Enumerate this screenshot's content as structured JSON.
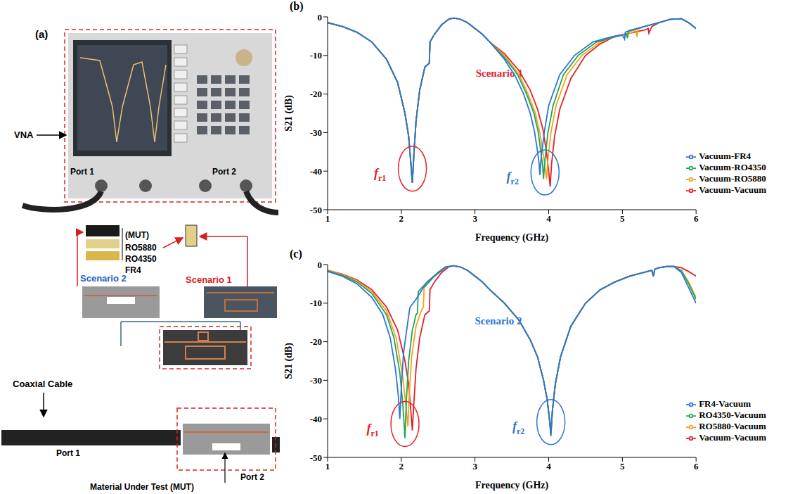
{
  "panel_a": {
    "label": "(a)",
    "instrument": "VNA",
    "ports": [
      "Port 1",
      "Port 2"
    ],
    "mut_label": "(MUT)",
    "materials": [
      "RO5880",
      "RO4350",
      "FR4"
    ],
    "scenarios": [
      "Scenario 2",
      "Scenario 1"
    ],
    "cable": "Coaxial Cable",
    "fixture_ports": [
      "Port 1",
      "Port 2"
    ],
    "mut_caption": "Material Under Test (MUT)"
  },
  "chart_data": [
    {
      "type": "line",
      "panel": "(b)",
      "x_label": "Frequency (GHz)",
      "y_label": "S21 (dB)",
      "xlim": [
        1,
        6
      ],
      "xticks": [
        1,
        2,
        3,
        4,
        5,
        6
      ],
      "ylim": [
        -50,
        0
      ],
      "yticks": [
        -50,
        -40,
        -30,
        -20,
        -10,
        0
      ],
      "grid": false,
      "legend": "lower right",
      "annotation": {
        "text": "Scenario 1",
        "color": "#e5202a"
      },
      "resonances": [
        {
          "text": "fr1",
          "x": 2.15,
          "color": "#e5202a"
        },
        {
          "text": "fr2",
          "x": 3.95,
          "color": "#2e75d6"
        }
      ],
      "series": [
        {
          "name": "Vacuum-Vacuum",
          "color": "#e5202a",
          "x": [
            1,
            1.2,
            1.4,
            1.6,
            1.8,
            1.95,
            2.05,
            2.1,
            2.13,
            2.15,
            2.17,
            2.2,
            2.25,
            2.32,
            2.38,
            2.39,
            2.45,
            2.55,
            2.65,
            2.72,
            2.8,
            2.9,
            3.0,
            3.1,
            3.2,
            3.4,
            3.6,
            3.75,
            3.85,
            3.92,
            3.97,
            4.0,
            4.02,
            4.04,
            4.08,
            4.15,
            4.3,
            4.5,
            4.7,
            4.9,
            5.1,
            5.3,
            5.35,
            5.36,
            5.4,
            5.5,
            5.65,
            5.8,
            5.9,
            6.0
          ],
          "values": [
            -1.5,
            -2.5,
            -4,
            -6.5,
            -11,
            -17,
            -25,
            -31,
            -38,
            -43,
            -36,
            -27,
            -19,
            -13,
            -12,
            -6.5,
            -4.5,
            -2,
            -0.5,
            -0.3,
            -0.6,
            -1.5,
            -3,
            -4.5,
            -6.5,
            -9.5,
            -14,
            -19,
            -24,
            -29,
            -35,
            -40,
            -44,
            -38,
            -31,
            -24,
            -16,
            -10,
            -7,
            -5,
            -4.2,
            -3.4,
            -3,
            -4.2,
            -2.5,
            -1.5,
            -0.6,
            -0.5,
            -1.5,
            -3
          ]
        },
        {
          "name": "Vacuum-RO5880",
          "color": "#f2a51a",
          "x": [
            1,
            1.2,
            1.4,
            1.6,
            1.8,
            1.95,
            2.05,
            2.1,
            2.13,
            2.15,
            2.17,
            2.2,
            2.25,
            2.32,
            2.38,
            2.39,
            2.45,
            2.55,
            2.65,
            2.72,
            2.8,
            2.9,
            3.0,
            3.1,
            3.2,
            3.4,
            3.6,
            3.72,
            3.82,
            3.88,
            3.93,
            3.95,
            3.97,
            3.99,
            4.03,
            4.1,
            4.25,
            4.45,
            4.7,
            4.9,
            5.1,
            5.18,
            5.2,
            5.21,
            5.3,
            5.5,
            5.65,
            5.8,
            5.9,
            6.0
          ],
          "values": [
            -1.5,
            -2.5,
            -4,
            -6.5,
            -11,
            -17,
            -25,
            -31,
            -38,
            -43,
            -36,
            -27,
            -19,
            -13,
            -12,
            -6.5,
            -4.5,
            -2,
            -0.5,
            -0.3,
            -0.6,
            -1.5,
            -3,
            -4.5,
            -6.5,
            -10,
            -15,
            -20,
            -25,
            -30,
            -36,
            -39,
            -42,
            -37,
            -30,
            -23,
            -15,
            -10,
            -6.5,
            -5,
            -4.3,
            -3.6,
            -5.2,
            -3.2,
            -2.5,
            -1.5,
            -0.6,
            -0.5,
            -1.5,
            -3
          ]
        },
        {
          "name": "Vacuum-RO4350",
          "color": "#23a455",
          "x": [
            1,
            1.2,
            1.4,
            1.6,
            1.8,
            1.95,
            2.05,
            2.1,
            2.13,
            2.15,
            2.17,
            2.2,
            2.25,
            2.32,
            2.38,
            2.39,
            2.45,
            2.55,
            2.65,
            2.72,
            2.8,
            2.9,
            3.0,
            3.1,
            3.2,
            3.4,
            3.58,
            3.7,
            3.8,
            3.86,
            3.9,
            3.92,
            3.93,
            3.95,
            3.99,
            4.06,
            4.2,
            4.4,
            4.65,
            4.9,
            5.05,
            5.07,
            5.08,
            5.15,
            5.3,
            5.5,
            5.65,
            5.8,
            5.9,
            6.0
          ],
          "values": [
            -1.5,
            -2.5,
            -4,
            -6.5,
            -11,
            -17,
            -25,
            -31,
            -38,
            -43,
            -36,
            -27,
            -19,
            -13,
            -12,
            -6.5,
            -4.5,
            -2,
            -0.5,
            -0.3,
            -0.6,
            -1.5,
            -3,
            -4.5,
            -6.5,
            -10.5,
            -15,
            -20,
            -25,
            -30,
            -36,
            -39,
            -42,
            -37,
            -30,
            -23,
            -15,
            -10,
            -6.5,
            -5.2,
            -4.5,
            -5.5,
            -3.8,
            -3.4,
            -2.5,
            -1.5,
            -0.6,
            -0.5,
            -1.5,
            -3
          ]
        },
        {
          "name": "Vacuum-FR4",
          "color": "#2e75d6",
          "x": [
            1,
            1.2,
            1.4,
            1.6,
            1.8,
            1.95,
            2.05,
            2.1,
            2.13,
            2.15,
            2.17,
            2.2,
            2.25,
            2.32,
            2.38,
            2.39,
            2.45,
            2.55,
            2.65,
            2.72,
            2.8,
            2.9,
            3.0,
            3.1,
            3.2,
            3.4,
            3.55,
            3.66,
            3.75,
            3.81,
            3.85,
            3.87,
            3.88,
            3.9,
            3.94,
            4.0,
            4.15,
            4.35,
            4.6,
            4.85,
            5.0,
            5.03,
            5.04,
            5.1,
            5.3,
            5.5,
            5.65,
            5.8,
            5.9,
            6.0
          ],
          "values": [
            -1.5,
            -2.5,
            -4,
            -6.5,
            -11,
            -17,
            -25,
            -31,
            -38,
            -43,
            -36,
            -27,
            -19,
            -13,
            -12,
            -6.5,
            -4.5,
            -2,
            -0.5,
            -0.3,
            -0.6,
            -1.5,
            -3,
            -4.5,
            -6.5,
            -11,
            -15.5,
            -20,
            -25,
            -30,
            -35,
            -38,
            -41,
            -36,
            -30,
            -23,
            -15,
            -10,
            -6.5,
            -5.2,
            -4.7,
            -5.8,
            -4,
            -3.5,
            -2.5,
            -1.5,
            -0.6,
            -0.5,
            -1.5,
            -3
          ]
        }
      ]
    },
    {
      "type": "line",
      "panel": "(c)",
      "x_label": "Frequency (GHz)",
      "y_label": "S21 (dB)",
      "xlim": [
        1,
        6
      ],
      "xticks": [
        1,
        2,
        3,
        4,
        5,
        6
      ],
      "ylim": [
        -50,
        0
      ],
      "yticks": [
        -50,
        -40,
        -30,
        -20,
        -10,
        0
      ],
      "grid": false,
      "legend": "lower right",
      "annotation": {
        "text": "Scenario 2",
        "color": "#2e75d6"
      },
      "resonances": [
        {
          "text": "fr1",
          "x": 2.05,
          "color": "#e5202a"
        },
        {
          "text": "fr2",
          "x": 4.03,
          "color": "#2e75d6"
        }
      ],
      "series": [
        {
          "name": "Vacuum-Vacuum",
          "color": "#e5202a",
          "x": [
            1,
            1.2,
            1.4,
            1.6,
            1.8,
            1.95,
            2.05,
            2.1,
            2.13,
            2.15,
            2.17,
            2.2,
            2.25,
            2.32,
            2.38,
            2.39,
            2.45,
            2.55,
            2.65,
            2.72,
            2.8,
            2.9,
            3.0,
            3.1,
            3.2,
            3.4,
            3.6,
            3.75,
            3.85,
            3.93,
            3.98,
            4.01,
            4.03,
            4.05,
            4.09,
            4.16,
            4.3,
            4.5,
            4.7,
            4.9,
            5.1,
            5.3,
            5.4,
            5.42,
            5.44,
            5.5,
            5.6,
            5.7,
            5.8,
            5.9,
            6.0
          ],
          "values": [
            -1.5,
            -2.5,
            -4,
            -6.5,
            -11,
            -17,
            -25,
            -31,
            -38,
            -43,
            -36,
            -27,
            -19,
            -13,
            -12,
            -6.5,
            -4.5,
            -2,
            -0.5,
            -0.3,
            -0.6,
            -1.5,
            -3,
            -4.5,
            -6.5,
            -10,
            -14.5,
            -19.5,
            -24,
            -30,
            -35,
            -40,
            -44,
            -38,
            -31,
            -24,
            -16,
            -10,
            -6.5,
            -4.5,
            -3,
            -2,
            -1.5,
            -3,
            -1.2,
            -0.8,
            -0.5,
            -0.5,
            -0.8,
            -1.8,
            -3
          ]
        },
        {
          "name": "RO5880-Vacuum",
          "color": "#f2a51a",
          "x": [
            1,
            1.2,
            1.4,
            1.6,
            1.8,
            1.93,
            2.02,
            2.06,
            2.09,
            2.11,
            2.14,
            2.2,
            2.27,
            2.3,
            2.31,
            2.4,
            2.5,
            2.6,
            2.7,
            2.8,
            2.9,
            3.0,
            3.1,
            3.2,
            3.4,
            3.6,
            3.75,
            3.85,
            3.93,
            3.98,
            4.01,
            4.03,
            4.05,
            4.09,
            4.16,
            4.3,
            4.5,
            4.7,
            4.9,
            5.1,
            5.3,
            5.4,
            5.42,
            5.44,
            5.5,
            5.6,
            5.7,
            5.8,
            5.9,
            6.0
          ],
          "values": [
            -1.5,
            -2.6,
            -4.2,
            -7,
            -12,
            -19,
            -29,
            -36,
            -42,
            -33,
            -24,
            -16,
            -12,
            -11,
            -6,
            -4,
            -2,
            -0.6,
            -0.3,
            -0.6,
            -1.5,
            -3,
            -4.5,
            -6.5,
            -10,
            -14.5,
            -19.5,
            -24,
            -30,
            -35,
            -40,
            -43,
            -38,
            -31,
            -24,
            -16,
            -10,
            -6.5,
            -4.5,
            -3,
            -2,
            -1.5,
            -3,
            -1.2,
            -0.8,
            -0.5,
            -0.5,
            -1.5,
            -4.5,
            -8.5
          ]
        },
        {
          "name": "RO4350-Vacuum",
          "color": "#23a455",
          "x": [
            1,
            1.2,
            1.4,
            1.6,
            1.8,
            1.9,
            1.98,
            2.02,
            2.05,
            2.07,
            2.1,
            2.15,
            2.2,
            2.22,
            2.23,
            2.35,
            2.5,
            2.6,
            2.7,
            2.8,
            2.9,
            3.0,
            3.1,
            3.2,
            3.4,
            3.6,
            3.75,
            3.85,
            3.93,
            3.98,
            4.01,
            4.03,
            4.05,
            4.09,
            4.16,
            4.3,
            4.5,
            4.7,
            4.9,
            5.1,
            5.3,
            5.4,
            5.42,
            5.44,
            5.5,
            5.6,
            5.7,
            5.8,
            5.9,
            6.0
          ],
          "values": [
            -1.6,
            -2.8,
            -4.5,
            -7.5,
            -13,
            -19,
            -28,
            -36,
            -45,
            -35,
            -25,
            -17,
            -13,
            -12.5,
            -7,
            -4.5,
            -2,
            -0.6,
            -0.3,
            -0.6,
            -1.5,
            -3,
            -4.5,
            -6.5,
            -10,
            -14.5,
            -19.5,
            -24,
            -30,
            -35,
            -40,
            -43.5,
            -38,
            -31,
            -24,
            -16,
            -10,
            -6.5,
            -4.5,
            -3,
            -2,
            -1.5,
            -3,
            -1.2,
            -0.8,
            -0.5,
            -0.5,
            -1.6,
            -5,
            -9
          ]
        },
        {
          "name": "FR4-Vacuum",
          "color": "#2e75d6",
          "x": [
            1,
            1.2,
            1.4,
            1.6,
            1.75,
            1.85,
            1.92,
            1.96,
            1.98,
            2.0,
            2.03,
            2.08,
            2.11,
            2.12,
            2.2,
            2.3,
            2.45,
            2.6,
            2.7,
            2.8,
            2.9,
            3.0,
            3.1,
            3.2,
            3.4,
            3.6,
            3.75,
            3.85,
            3.93,
            3.98,
            4.01,
            4.03,
            4.05,
            4.09,
            4.16,
            4.3,
            4.5,
            4.7,
            4.9,
            5.1,
            5.3,
            5.4,
            5.42,
            5.44,
            5.5,
            5.6,
            5.7,
            5.8,
            5.9,
            6.0
          ],
          "values": [
            -1.8,
            -3,
            -5,
            -8.5,
            -13,
            -19,
            -27,
            -34,
            -40,
            -32,
            -23,
            -16,
            -12,
            -11,
            -9,
            -6,
            -3,
            -0.8,
            -0.3,
            -0.6,
            -1.5,
            -3,
            -4.5,
            -6.5,
            -10,
            -14.5,
            -19.5,
            -24,
            -30,
            -35,
            -40,
            -44.5,
            -38,
            -31,
            -24,
            -16,
            -10,
            -6.5,
            -4.5,
            -3,
            -2,
            -1.5,
            -3,
            -1.2,
            -0.8,
            -0.5,
            -0.5,
            -2,
            -6,
            -10
          ]
        }
      ]
    }
  ]
}
